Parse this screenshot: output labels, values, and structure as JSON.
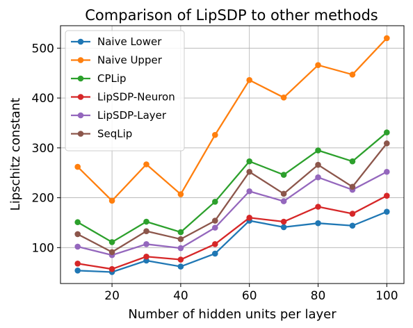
{
  "chart_data": {
    "type": "line",
    "title": "Comparison of LipSDP to other methods",
    "xlabel": "Number of hidden units per layer",
    "ylabel": "Lipschitz constant",
    "x": [
      10,
      20,
      30,
      40,
      50,
      60,
      70,
      80,
      90,
      100
    ],
    "xlim": [
      5,
      105
    ],
    "ylim": [
      28,
      545
    ],
    "xticks": [
      20,
      40,
      60,
      80,
      100
    ],
    "yticks": [
      100,
      200,
      300,
      400,
      500
    ],
    "grid": true,
    "legend_position": "top-left",
    "series": [
      {
        "name": "Naive Lower",
        "color": "#1f77b4",
        "values": [
          54,
          51,
          74,
          62,
          88,
          154,
          141,
          149,
          144,
          172
        ]
      },
      {
        "name": "Naive Upper",
        "color": "#ff7f0e",
        "values": [
          262,
          194,
          267,
          207,
          326,
          436,
          401,
          466,
          447,
          520
        ]
      },
      {
        "name": "CPLip",
        "color": "#2ca02c",
        "values": [
          151,
          111,
          152,
          131,
          192,
          273,
          246,
          295,
          273,
          331
        ]
      },
      {
        "name": "LipSDP-Neuron",
        "color": "#d62728",
        "values": [
          68,
          57,
          82,
          76,
          107,
          160,
          152,
          182,
          168,
          204
        ]
      },
      {
        "name": "LipSDP-Layer",
        "color": "#9467bd",
        "values": [
          102,
          85,
          107,
          99,
          140,
          213,
          193,
          241,
          216,
          252
        ]
      },
      {
        "name": "SeqLip",
        "color": "#8c564b",
        "values": [
          127,
          91,
          133,
          117,
          154,
          252,
          208,
          266,
          222,
          309
        ]
      }
    ]
  }
}
